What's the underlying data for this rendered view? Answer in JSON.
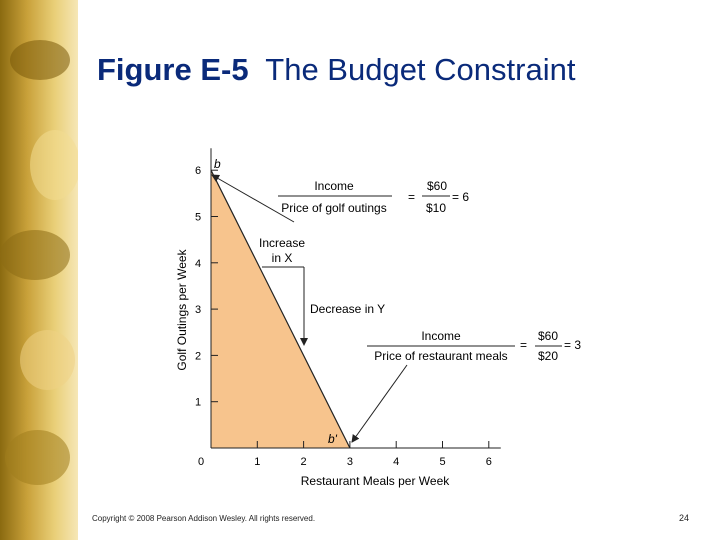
{
  "slide": {
    "title_number": "Figure E-5",
    "title_text": "The Budget Constraint",
    "copyright": "Copyright © 2008 Pearson Addison Wesley. All rights reserved.",
    "page_number": "24"
  },
  "colors": {
    "title": "#0a2a7a",
    "fill": "#f7c48d",
    "sidebar": "#c9a13a"
  },
  "chart_data": {
    "type": "area",
    "title": "",
    "xlabel": "Restaurant Meals per Week",
    "ylabel": "Golf Outings per Week",
    "xlim": [
      0,
      6
    ],
    "ylim": [
      0,
      6
    ],
    "x_ticks": [
      "0",
      "1",
      "2",
      "3",
      "4",
      "5",
      "6"
    ],
    "y_ticks": [
      "1",
      "2",
      "3",
      "4",
      "5",
      "6"
    ],
    "x": [
      0,
      3
    ],
    "y": [
      6,
      0
    ],
    "points": [
      {
        "label": "b",
        "x": 0,
        "y": 6
      },
      {
        "label": "b'",
        "x": 3,
        "y": 0
      }
    ],
    "annotations": {
      "increase_line1": "Increase",
      "increase_line2": "in X",
      "decrease": "Decrease in Y",
      "golf_num": "Income",
      "golf_den": "Price of golf outings",
      "golf_eq": "=",
      "golf_num_val": "$60",
      "golf_den_val": "$10",
      "golf_result": "= 6",
      "rest_num": "Income",
      "rest_den": "Price of restaurant meals",
      "rest_eq": "=",
      "rest_num_val": "$60",
      "rest_den_val": "$20",
      "rest_result": "= 3"
    }
  }
}
